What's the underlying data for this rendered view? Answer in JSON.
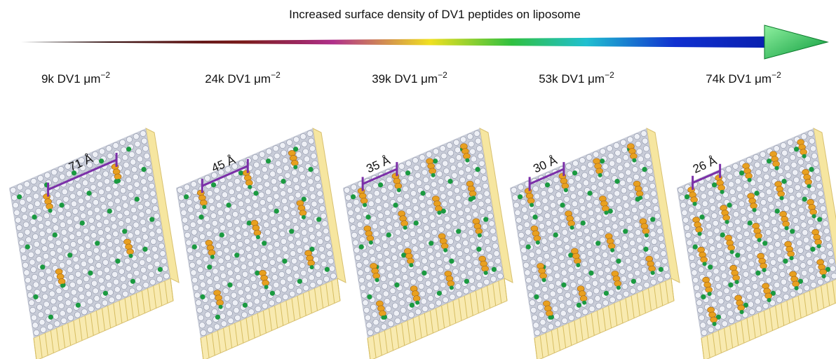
{
  "title": "Increased surface density of DV1 peptides on liposome",
  "panels": [
    {
      "density": "9k DV1 μm",
      "exponent": "−2",
      "spacing": "71 Å"
    },
    {
      "density": "24k DV1 μm",
      "exponent": "−2",
      "spacing": "45 Å"
    },
    {
      "density": "39k DV1 μm",
      "exponent": "−2",
      "spacing": "35 Å"
    },
    {
      "density": "53k DV1 μm",
      "exponent": "−2",
      "spacing": "30 Å"
    },
    {
      "density": "74k DV1 μm",
      "exponent": "−2",
      "spacing": "26 Å"
    }
  ]
}
